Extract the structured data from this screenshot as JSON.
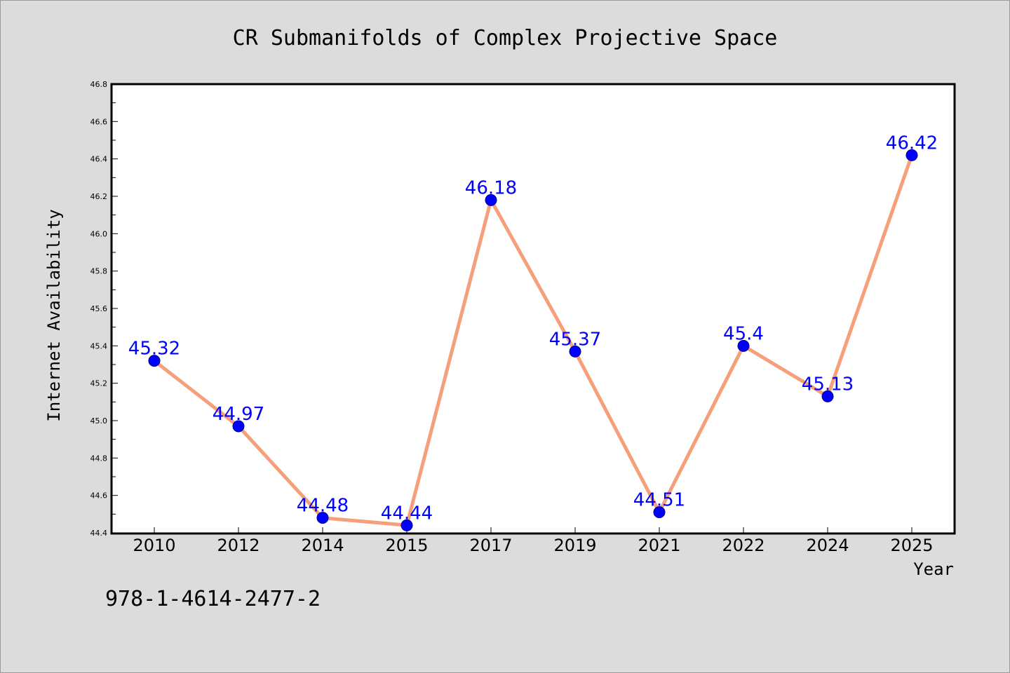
{
  "chart_data": {
    "type": "line",
    "title": "CR Submanifolds of Complex Projective Space",
    "xlabel": "Year",
    "ylabel": "Internet Availability",
    "categories": [
      "2010",
      "2012",
      "2014",
      "2015",
      "2017",
      "2019",
      "2021",
      "2022",
      "2024",
      "2025"
    ],
    "series": [
      {
        "values": [
          45.32,
          44.97,
          44.48,
          44.44,
          46.18,
          45.37,
          44.51,
          45.4,
          45.13,
          46.42
        ]
      }
    ],
    "data_labels": [
      "45.32",
      "44.97",
      "44.48",
      "44.44",
      "46.18",
      "45.37",
      "44.51",
      "45.4",
      "45.13",
      "46.42"
    ],
    "ylim": [
      44.4,
      46.8
    ],
    "yticks": [
      "44.4",
      "44.6",
      "44.8",
      "45.0",
      "45.2",
      "45.4",
      "45.6",
      "45.8",
      "46.0",
      "46.2",
      "46.4",
      "46.6",
      "46.8"
    ],
    "grid": false,
    "line_color": "#f5a07a",
    "marker_color": "#0000ff",
    "label_color": "#0000ff"
  },
  "footer": {
    "isbn": "978-1-4614-2477-2"
  }
}
